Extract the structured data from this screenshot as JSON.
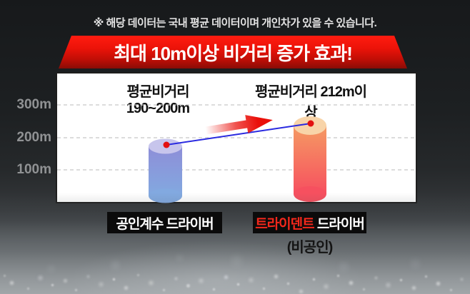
{
  "disclaimer": "※ 해당 데이터는 국내 평균 데이터이며 개인차가 있을 수 있습니다.",
  "banner": {
    "title": "최대 10m이상 비거리 증가 효과!"
  },
  "chart_data": {
    "type": "bar",
    "title": "최대 10m이상 비거리 증가 효과!",
    "categories": [
      "공인계수 드라이버",
      "트라이덴트 드라이버(비공인)"
    ],
    "series": [
      {
        "name": "평균비거리",
        "values_m": [
          195,
          212
        ],
        "values_shown": [
          "190~200m",
          "212m이상"
        ]
      }
    ],
    "bar_value_labels": [
      "평균비거리 190~200m",
      "평균비거리 212m이상"
    ],
    "yticks": [
      "300m",
      "200m",
      "100m"
    ],
    "ytick_values_m": [
      300,
      200,
      100
    ],
    "ylim_m": [
      0,
      400
    ],
    "grid": "horizontal-dashed",
    "legend": "none",
    "annotations": [
      "red gradient arrow up-right",
      "blue trend line connecting bar tops with red dots"
    ],
    "bar_styles": [
      {
        "top_face": "#c7c5ec",
        "body_top": "#8e8ed8",
        "body_bottom": "#82a9e0"
      },
      {
        "top_face": "#f8d4a9",
        "body_top": "#f59a63",
        "body_bottom": "#f6505f"
      }
    ]
  },
  "badges": {
    "left": "공인계수 드라이버",
    "right_brand": "트라이덴트",
    "right_suffix": " 드라이버",
    "right_sub": "(비공인)"
  },
  "colors": {
    "banner_top": "#ff1c10",
    "banner_bottom": "#8a0c06",
    "badge_bg": "#0b0b0b",
    "brand_red": "#f5281c",
    "dot_red": "#e31111",
    "line_blue": "#2a2ae0",
    "arrow_red": "#ea100a",
    "grid_gray": "#c6c6c6"
  }
}
